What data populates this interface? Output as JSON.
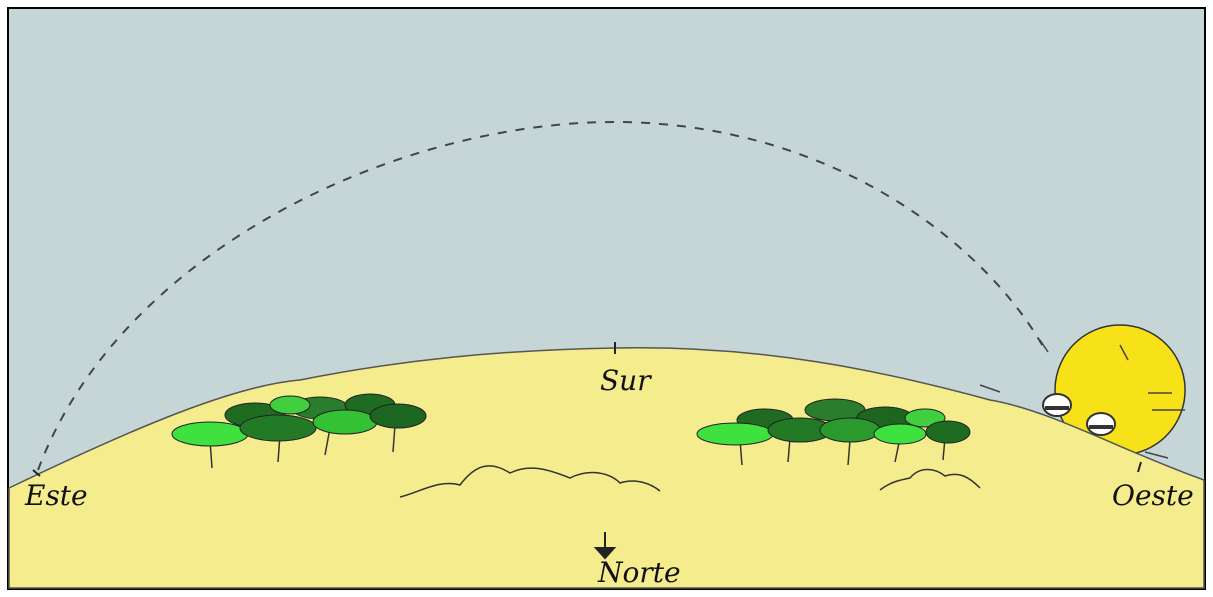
{
  "labels": {
    "east": "Este",
    "south": "Sur",
    "west": "Oeste",
    "north": "Norte"
  }
}
